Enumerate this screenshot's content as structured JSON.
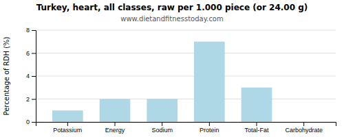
{
  "chart_data": {
    "type": "bar",
    "title": "Turkey, heart, all classes, raw per 1.000 piece (or 24.00 g)",
    "subtitle": "www.dietandfitnesstoday.com",
    "categories": [
      "Potassium",
      "Energy",
      "Sodium",
      "Protein",
      "Total-Fat",
      "Carbohydrate"
    ],
    "values": [
      1.0,
      2.0,
      2.0,
      7.0,
      3.0,
      0.0
    ],
    "color": "#aed8e6",
    "ylabel": "Percentage of RDH (%)",
    "ylim": [
      0,
      8
    ],
    "yticks": [
      0,
      2,
      4,
      6,
      8
    ],
    "grid": true
  }
}
